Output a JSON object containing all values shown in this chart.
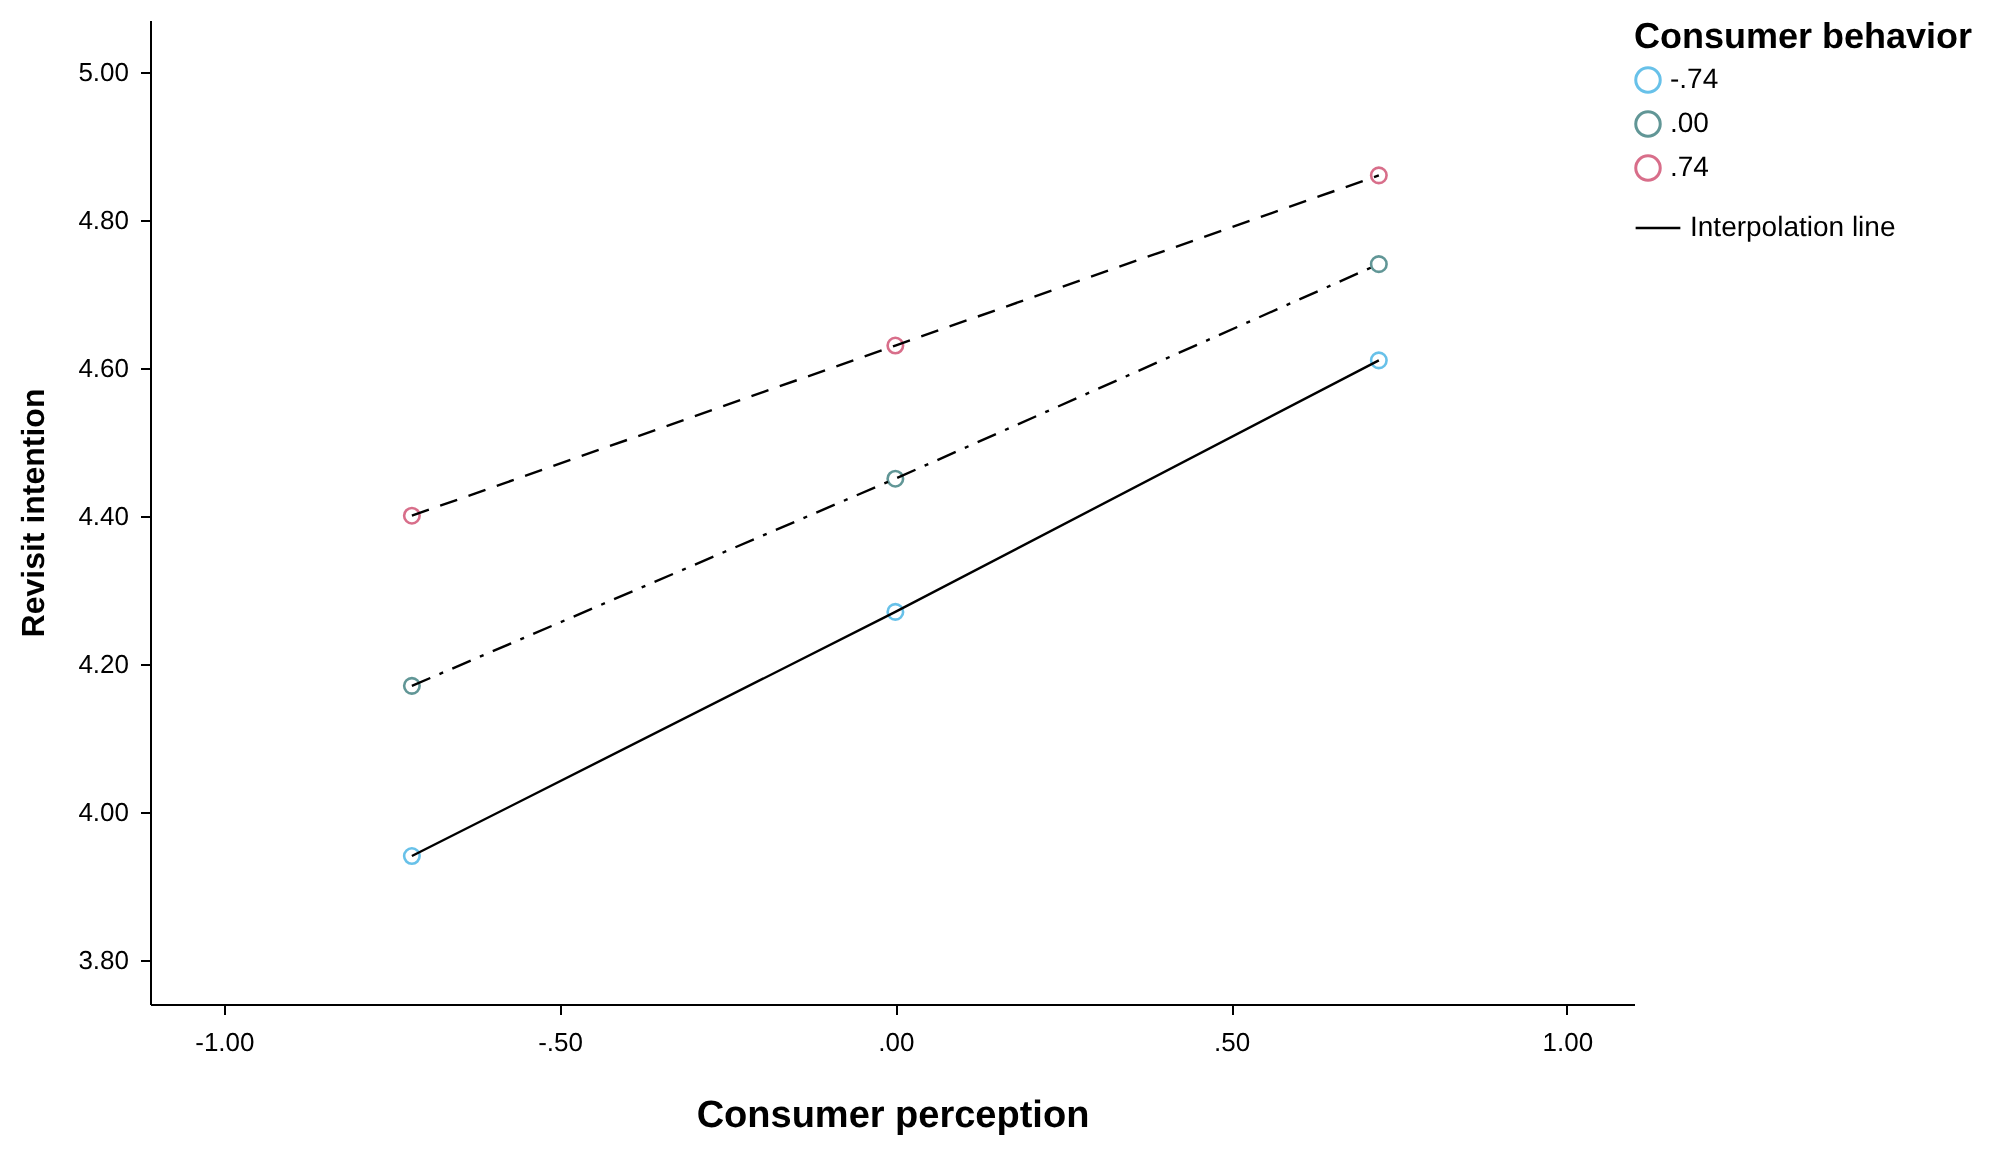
{
  "chart_data": {
    "type": "scatter",
    "xlabel": "Consumer perception",
    "ylabel": "Revisit intention",
    "legend_title": "Consumer behavior",
    "legend": "top right",
    "grid": false,
    "marker": "circle",
    "x": [
      -0.72,
      0.0,
      0.72
    ],
    "xlim": [
      -1.11,
      1.1
    ],
    "ylim": [
      3.74,
      5.07
    ],
    "xticks": [
      {
        "value": -1,
        "label": "-1.00"
      },
      {
        "value": -0.5,
        "label": "-.50"
      },
      {
        "value": 0,
        "label": ".00"
      },
      {
        "value": 0.5,
        "label": ".50"
      },
      {
        "value": 1,
        "label": "1.00"
      }
    ],
    "yticks": [
      {
        "value": 3.8,
        "label": "3.80"
      },
      {
        "value": 4.0,
        "label": "4.00"
      },
      {
        "value": 4.2,
        "label": "4.20"
      },
      {
        "value": 4.4,
        "label": "4.40"
      },
      {
        "value": 4.6,
        "label": "4.60"
      },
      {
        "value": 4.8,
        "label": "4.80"
      },
      {
        "value": 5.0,
        "label": "5.00"
      }
    ],
    "series": [
      {
        "name": "-.74",
        "color": "#29a8e0",
        "values": [
          3.94,
          4.27,
          4.61
        ]
      },
      {
        "name": ".00",
        "color": "#1f6b6b",
        "values": [
          4.17,
          4.45,
          4.74
        ]
      },
      {
        "name": ".74",
        "color": "#c8325a",
        "values": [
          4.4,
          4.63,
          4.86
        ]
      },
      {
        "type": "line",
        "name": "Interpolation line",
        "color": "#000000",
        "line_style": "solid",
        "marker": "none",
        "values": [
          3.94,
          4.27,
          4.61
        ]
      },
      {
        "type": "line",
        "color": "#000000",
        "line_style": "dashdot",
        "marker": "none",
        "values": [
          4.17,
          4.45,
          4.74
        ]
      },
      {
        "type": "line",
        "color": "#000000",
        "line_style": "dashed",
        "marker": "none",
        "values": [
          4.4,
          4.63,
          4.86
        ]
      }
    ]
  }
}
